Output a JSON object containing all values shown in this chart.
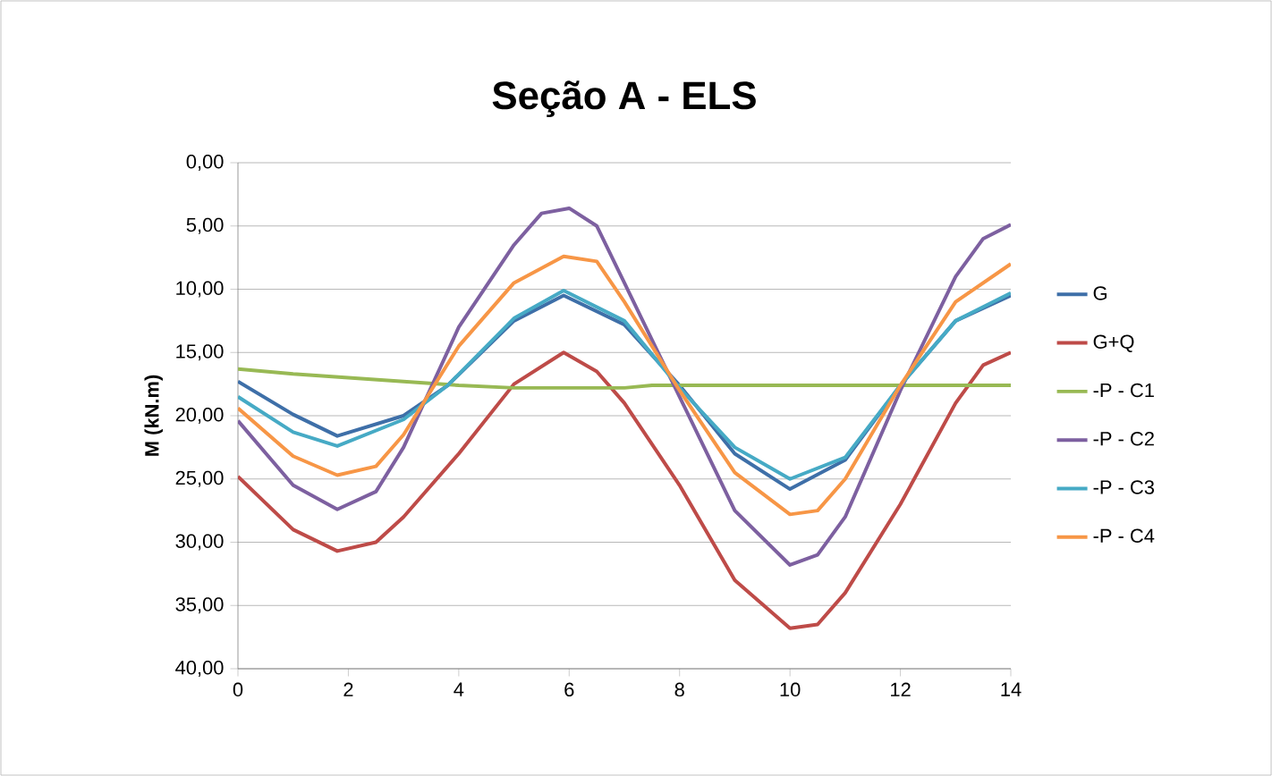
{
  "chart_data": {
    "type": "line",
    "title": "Seção A - ELS",
    "ylabel": "M (kN.m)",
    "xlim": [
      0,
      14
    ],
    "xticks": [
      0,
      2,
      4,
      6,
      8,
      10,
      12,
      14
    ],
    "ylim": [
      40,
      0
    ],
    "yticks": [
      {
        "value": 0,
        "label": "0,00"
      },
      {
        "value": 5,
        "label": "5,00"
      },
      {
        "value": 10,
        "label": "10,00"
      },
      {
        "value": 15,
        "label": "15,00"
      },
      {
        "value": 20,
        "label": "20,00"
      },
      {
        "value": 25,
        "label": "25,00"
      },
      {
        "value": 30,
        "label": "30,00"
      },
      {
        "value": 35,
        "label": "35,00"
      },
      {
        "value": 40,
        "label": "40,00"
      }
    ],
    "grid": "y",
    "legend": "right",
    "marker": "none",
    "line_style": "solid",
    "series": [
      {
        "name": "G",
        "color": "#3e6fa8",
        "x": [
          0,
          1,
          1.8,
          3,
          3.8,
          5,
          5.9,
          7,
          8,
          9,
          10,
          11,
          12,
          13,
          14
        ],
        "values": [
          17.3,
          19.9,
          21.6,
          20.0,
          17.6,
          12.5,
          10.5,
          12.8,
          17.6,
          23.0,
          25.8,
          23.5,
          17.6,
          12.5,
          10.5
        ]
      },
      {
        "name": "G+Q",
        "color": "#be4b48",
        "x": [
          0,
          1,
          1.8,
          2.5,
          3,
          4,
          5,
          5.9,
          6.5,
          7,
          8,
          9,
          10,
          10.5,
          11,
          12,
          13,
          13.5,
          14
        ],
        "values": [
          24.8,
          29.0,
          30.7,
          30.0,
          28.0,
          23.0,
          17.5,
          15.0,
          16.5,
          19.0,
          25.5,
          33.0,
          36.8,
          36.5,
          34.0,
          27.0,
          19.0,
          16.0,
          15.0
        ]
      },
      {
        "name": "-P - C1",
        "color": "#98b954",
        "x": [
          0,
          1,
          2,
          3,
          4,
          5,
          6,
          7,
          7.5,
          14
        ],
        "values": [
          16.3,
          16.7,
          17.0,
          17.3,
          17.6,
          17.8,
          17.8,
          17.8,
          17.6,
          17.6
        ]
      },
      {
        "name": "-P - C2",
        "color": "#7d60a0",
        "x": [
          0,
          1,
          1.8,
          2.5,
          3,
          4,
          5,
          5.5,
          6,
          6.5,
          7,
          8,
          9,
          10,
          10.5,
          11,
          12,
          13,
          13.5,
          14
        ],
        "values": [
          20.4,
          25.5,
          27.4,
          26.0,
          22.5,
          13.0,
          6.5,
          4.0,
          3.6,
          5.0,
          9.5,
          18.5,
          27.5,
          31.8,
          31.0,
          28.0,
          18.0,
          9.0,
          6.0,
          4.9
        ]
      },
      {
        "name": "-P - C3",
        "color": "#46aac5",
        "x": [
          0,
          1,
          1.8,
          3,
          3.8,
          5,
          5.9,
          7,
          8,
          9,
          10,
          11,
          12,
          13,
          14
        ],
        "values": [
          18.5,
          21.3,
          22.4,
          20.3,
          17.6,
          12.3,
          10.1,
          12.5,
          17.8,
          22.5,
          25.0,
          23.3,
          17.6,
          12.5,
          10.3
        ]
      },
      {
        "name": "-P - C4",
        "color": "#f79646",
        "x": [
          0,
          1,
          1.8,
          2.5,
          3,
          4,
          5,
          5.9,
          6.5,
          7,
          8,
          9,
          10,
          10.5,
          11,
          12,
          13,
          14
        ],
        "values": [
          19.4,
          23.2,
          24.7,
          24.0,
          21.5,
          14.5,
          9.5,
          7.4,
          7.8,
          11.0,
          18.0,
          24.5,
          27.8,
          27.5,
          25.0,
          17.6,
          11.0,
          8.0
        ]
      }
    ]
  }
}
